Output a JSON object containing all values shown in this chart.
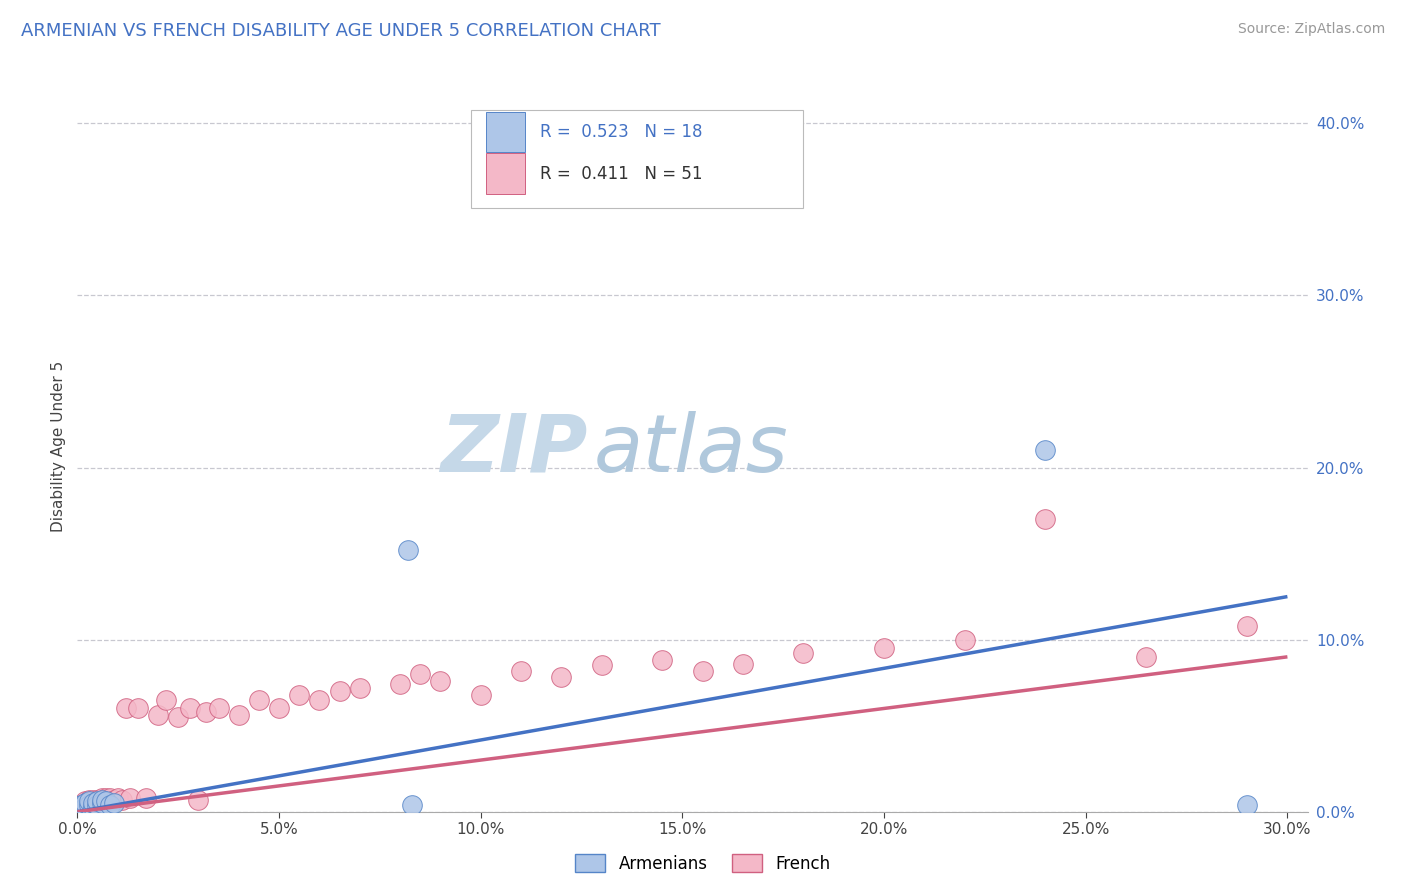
{
  "title": "ARMENIAN VS FRENCH DISABILITY AGE UNDER 5 CORRELATION CHART",
  "source": "Source: ZipAtlas.com",
  "ylabel": "Disability Age Under 5",
  "xlim": [
    0.0,
    0.305
  ],
  "ylim": [
    0.0,
    0.425
  ],
  "xtick_vals": [
    0.0,
    0.05,
    0.1,
    0.15,
    0.2,
    0.25,
    0.3
  ],
  "ytick_vals": [
    0.0,
    0.1,
    0.2,
    0.3,
    0.4
  ],
  "bg_color": "#ffffff",
  "grid_color": "#c8c8d0",
  "arm_dot_color": "#aec6e8",
  "arm_edge_color": "#5585c8",
  "arm_line_color": "#4472c4",
  "fr_dot_color": "#f4b8c8",
  "fr_edge_color": "#d06080",
  "fr_line_color": "#d06080",
  "arm_R": "0.523",
  "arm_N": "18",
  "fr_R": "0.411",
  "fr_N": "51",
  "watermark_zip": "ZIP",
  "watermark_atlas": "atlas",
  "watermark_color_zip": "#c8d8e8",
  "watermark_color_atlas": "#b8c8d8",
  "arm_scatter_x": [
    0.001,
    0.002,
    0.002,
    0.003,
    0.003,
    0.004,
    0.004,
    0.005,
    0.005,
    0.006,
    0.006,
    0.007,
    0.008,
    0.009,
    0.082,
    0.083,
    0.24,
    0.29
  ],
  "arm_scatter_y": [
    0.004,
    0.003,
    0.005,
    0.004,
    0.006,
    0.003,
    0.005,
    0.004,
    0.006,
    0.005,
    0.007,
    0.006,
    0.004,
    0.005,
    0.152,
    0.004,
    0.21,
    0.004
  ],
  "fr_scatter_x": [
    0.001,
    0.002,
    0.003,
    0.003,
    0.004,
    0.004,
    0.005,
    0.005,
    0.006,
    0.006,
    0.007,
    0.007,
    0.008,
    0.008,
    0.009,
    0.01,
    0.011,
    0.012,
    0.013,
    0.015,
    0.017,
    0.02,
    0.022,
    0.025,
    0.028,
    0.03,
    0.032,
    0.035,
    0.04,
    0.045,
    0.05,
    0.055,
    0.06,
    0.065,
    0.07,
    0.08,
    0.085,
    0.09,
    0.1,
    0.11,
    0.12,
    0.13,
    0.145,
    0.155,
    0.165,
    0.18,
    0.2,
    0.22,
    0.24,
    0.265,
    0.29
  ],
  "fr_scatter_y": [
    0.004,
    0.006,
    0.005,
    0.007,
    0.005,
    0.007,
    0.005,
    0.007,
    0.006,
    0.008,
    0.006,
    0.008,
    0.006,
    0.008,
    0.007,
    0.008,
    0.007,
    0.06,
    0.008,
    0.06,
    0.008,
    0.056,
    0.065,
    0.055,
    0.06,
    0.007,
    0.058,
    0.06,
    0.056,
    0.065,
    0.06,
    0.068,
    0.065,
    0.07,
    0.072,
    0.074,
    0.08,
    0.076,
    0.068,
    0.082,
    0.078,
    0.085,
    0.088,
    0.082,
    0.086,
    0.092,
    0.095,
    0.1,
    0.17,
    0.09,
    0.108
  ],
  "arm_line_x0": 0.0,
  "arm_line_y0": 0.0,
  "arm_line_x1": 0.3,
  "arm_line_y1": 0.125,
  "fr_line_x0": 0.0,
  "fr_line_y0": 0.0,
  "fr_line_x1": 0.3,
  "fr_line_y1": 0.09
}
